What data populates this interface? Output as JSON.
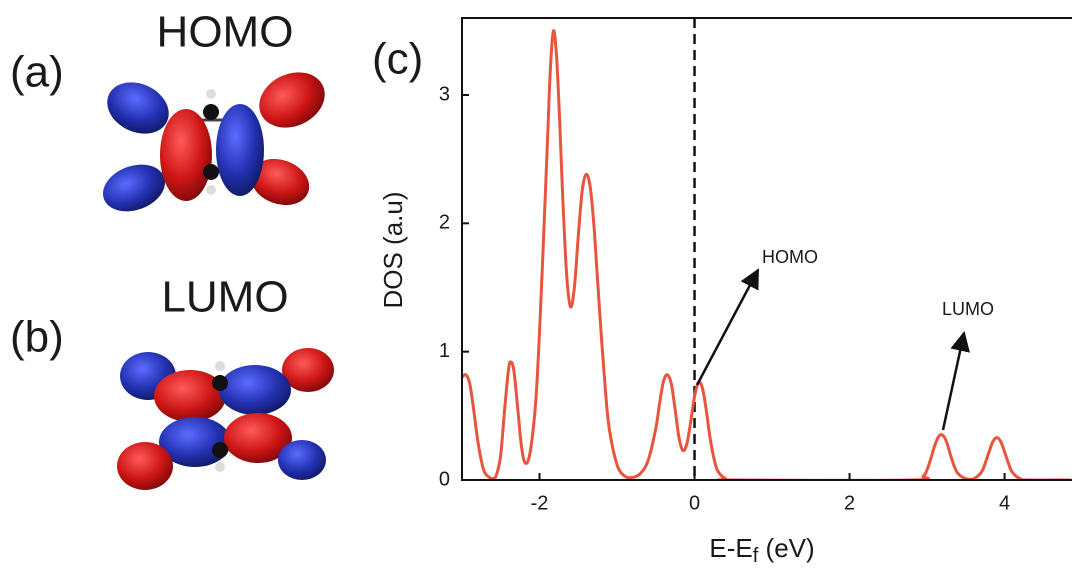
{
  "panels": [
    {
      "label": "(a)",
      "title": "HOMO"
    },
    {
      "label": "(b)",
      "title": "LUMO"
    }
  ],
  "chart_data": {
    "type": "line",
    "panel_label": "(c)",
    "x_label": "E-Ef (eV)",
    "y_label": "DOS (a.u)",
    "color": "#e8553f",
    "x": [
      -3.0,
      -2.95,
      -2.9,
      -2.85,
      -2.8,
      -2.75,
      -2.7,
      -2.6,
      -2.55,
      -2.5,
      -2.45,
      -2.4,
      -2.37,
      -2.33,
      -2.28,
      -2.23,
      -2.18,
      -2.12,
      -2.05,
      -2.0,
      -1.95,
      -1.9,
      -1.86,
      -1.82,
      -1.78,
      -1.74,
      -1.7,
      -1.65,
      -1.6,
      -1.55,
      -1.5,
      -1.45,
      -1.4,
      -1.35,
      -1.3,
      -1.25,
      -1.2,
      -1.15,
      -1.1,
      -1.0,
      -0.9,
      -0.8,
      -0.7,
      -0.6,
      -0.5,
      -0.45,
      -0.4,
      -0.35,
      -0.3,
      -0.25,
      -0.2,
      -0.15,
      -0.1,
      -0.05,
      0.0,
      0.05,
      0.1,
      0.15,
      0.2,
      0.25,
      0.3,
      0.4,
      0.5,
      2.8,
      2.95,
      3.0,
      3.05,
      3.1,
      3.15,
      3.2,
      3.25,
      3.3,
      3.35,
      3.4,
      3.5,
      3.6,
      3.7,
      3.75,
      3.8,
      3.85,
      3.9,
      3.95,
      4.0,
      4.05,
      4.1,
      4.2,
      4.3,
      4.85
    ],
    "values": [
      0.8,
      0.82,
      0.75,
      0.55,
      0.32,
      0.15,
      0.05,
      0.01,
      0.05,
      0.2,
      0.55,
      0.86,
      0.92,
      0.85,
      0.55,
      0.25,
      0.13,
      0.22,
      0.6,
      1.15,
      1.85,
      2.6,
      3.2,
      3.5,
      3.3,
      2.8,
      2.2,
      1.6,
      1.35,
      1.5,
      1.9,
      2.25,
      2.38,
      2.3,
      2.0,
      1.55,
      1.1,
      0.7,
      0.4,
      0.12,
      0.03,
      0.02,
      0.05,
      0.15,
      0.4,
      0.6,
      0.77,
      0.82,
      0.75,
      0.55,
      0.33,
      0.23,
      0.28,
      0.45,
      0.65,
      0.76,
      0.72,
      0.55,
      0.33,
      0.17,
      0.07,
      0.01,
      0,
      0,
      0.03,
      0.08,
      0.17,
      0.27,
      0.34,
      0.35,
      0.3,
      0.2,
      0.11,
      0.05,
      0.01,
      0.01,
      0.06,
      0.13,
      0.22,
      0.3,
      0.33,
      0.3,
      0.22,
      0.13,
      0.06,
      0.01,
      0,
      0
    ],
    "xlim": [
      -3,
      4.87
    ],
    "ylim": [
      0,
      3.6
    ],
    "xticks": [
      -2,
      0,
      2,
      4
    ],
    "yticks": [
      0,
      1,
      2,
      3
    ],
    "fermi_line": {
      "x": 0
    },
    "annotations": [
      {
        "text": "HOMO"
      },
      {
        "text": "LUMO"
      }
    ]
  }
}
